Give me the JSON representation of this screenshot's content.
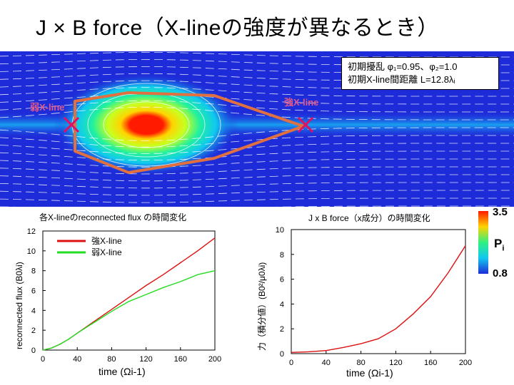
{
  "slide": {
    "title": "J × B  force（X-lineの強度が異なるとき）"
  },
  "simulation": {
    "info_line1": "初期擾乱 φ₁=0.95、φ₂=1.0",
    "info_line2": "初期X-line間距離 L=12.8λᵢ",
    "strong_xline_label": "強X-line",
    "weak_xline_label": "弱X-line",
    "colors": {
      "background": "#1e2bd8",
      "xline_marker": "#e01060",
      "path": "#e07040"
    }
  },
  "colorbar": {
    "max_label": "3.5",
    "min_label": "0.8",
    "quantity_label": "Pi"
  },
  "chart_data": [
    {
      "type": "line",
      "title": "各X-lineのreconnected flux の時間変化",
      "xlabel": "time (Ωi-1)",
      "ylabel": "reconnected flux (B0λi)",
      "xlim": [
        0,
        200
      ],
      "ylim": [
        0,
        12
      ],
      "xticks": [
        0,
        40,
        80,
        120,
        160,
        200
      ],
      "yticks": [
        0,
        2,
        4,
        6,
        8,
        10,
        12
      ],
      "series": [
        {
          "name": "強X-line",
          "color": "#dd1111",
          "x": [
            0,
            10,
            20,
            30,
            40,
            60,
            80,
            100,
            120,
            140,
            160,
            180,
            200
          ],
          "y": [
            0,
            0.2,
            0.6,
            1.1,
            1.7,
            2.9,
            4.1,
            5.3,
            6.5,
            7.6,
            8.8,
            10.0,
            11.3
          ]
        },
        {
          "name": "弱X-line",
          "color": "#22dd22",
          "x": [
            0,
            10,
            20,
            30,
            40,
            60,
            80,
            100,
            120,
            140,
            160,
            180,
            200
          ],
          "y": [
            0,
            0.2,
            0.6,
            1.1,
            1.7,
            2.8,
            3.9,
            4.9,
            5.6,
            6.3,
            6.9,
            7.6,
            8.0
          ]
        }
      ]
    },
    {
      "type": "line",
      "title": "J x B force（x成分）の時間変化",
      "xlabel": "time (Ωi-1)",
      "ylabel": "力（積分値）(B0²/μ0λi)",
      "xlim": [
        0,
        200
      ],
      "ylim": [
        0,
        10
      ],
      "xticks": [
        0,
        40,
        80,
        120,
        160,
        200
      ],
      "yticks": [
        0,
        2,
        4,
        6,
        8,
        10
      ],
      "series": [
        {
          "name": "J x B force",
          "color": "#dd1111",
          "x": [
            0,
            20,
            40,
            60,
            80,
            100,
            120,
            140,
            160,
            180,
            200
          ],
          "y": [
            0.1,
            0.15,
            0.25,
            0.5,
            0.8,
            1.2,
            2.0,
            3.2,
            4.6,
            6.5,
            8.7
          ]
        }
      ]
    }
  ]
}
